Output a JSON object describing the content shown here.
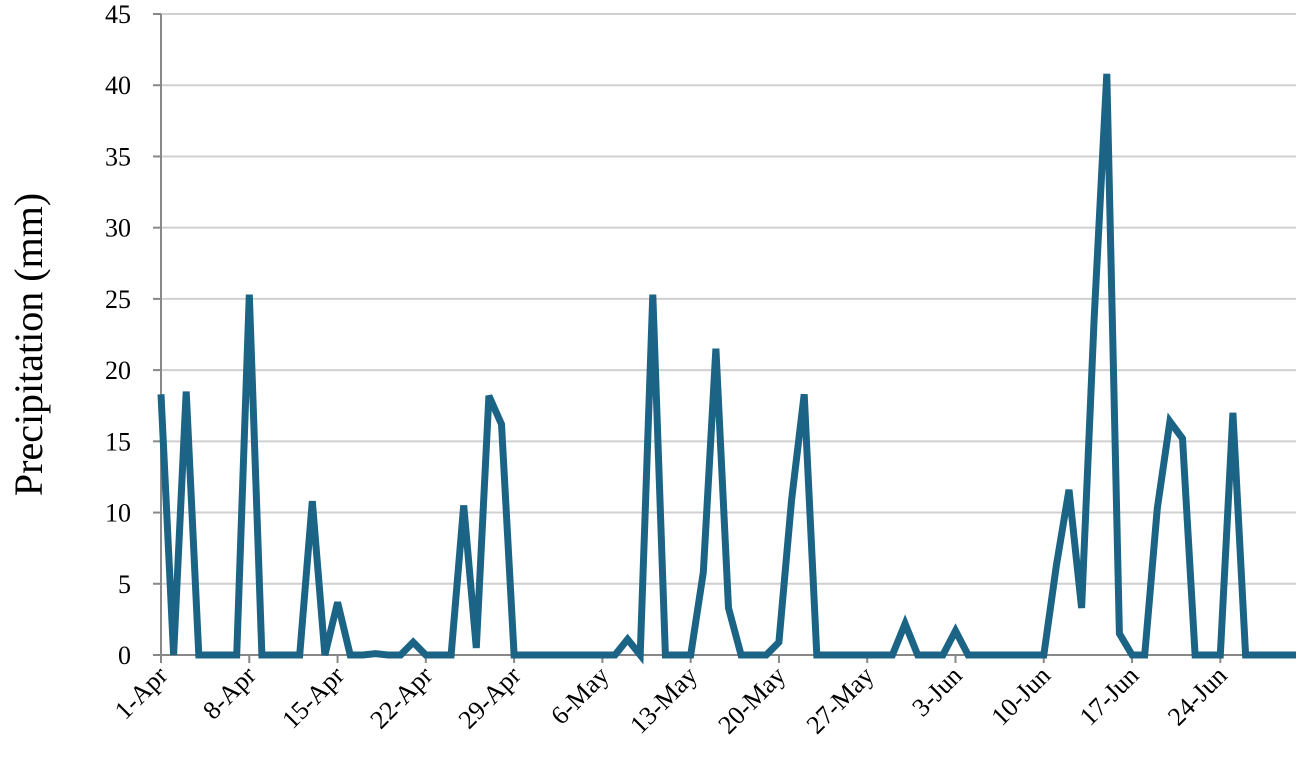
{
  "chart_data": {
    "type": "line",
    "title": "",
    "xlabel": "",
    "ylabel": "Precipitation  (mm)",
    "ylim": [
      0,
      45
    ],
    "yticks": [
      0,
      5,
      10,
      15,
      20,
      25,
      30,
      35,
      40,
      45
    ],
    "xlim": [
      "2021-04-01",
      "2021-06-30"
    ],
    "x_tick_labels": [
      "1-Apr",
      "8-Apr",
      "15-Apr",
      "22-Apr",
      "29-Apr",
      "6-May",
      "13-May",
      "20-May",
      "27-May",
      "3-Jun",
      "10-Jun",
      "17-Jun",
      "24-Jun"
    ],
    "x_tick_dates": [
      "2021-04-01",
      "2021-04-08",
      "2021-04-15",
      "2021-04-22",
      "2021-04-29",
      "2021-05-06",
      "2021-05-13",
      "2021-05-20",
      "2021-05-27",
      "2021-06-03",
      "2021-06-10",
      "2021-06-17",
      "2021-06-24"
    ],
    "grid": true,
    "line_color": "#1b6485",
    "series": [
      {
        "x": [
          "2021-04-01",
          "2021-04-02",
          "2021-04-03",
          "2021-04-04",
          "2021-04-05",
          "2021-04-06",
          "2021-04-07",
          "2021-04-08",
          "2021-04-09",
          "2021-04-10",
          "2021-04-11",
          "2021-04-12",
          "2021-04-13",
          "2021-04-14",
          "2021-04-15",
          "2021-04-16",
          "2021-04-17",
          "2021-04-18",
          "2021-04-19",
          "2021-04-20",
          "2021-04-21",
          "2021-04-22",
          "2021-04-23",
          "2021-04-24",
          "2021-04-25",
          "2021-04-26",
          "2021-04-27",
          "2021-04-28",
          "2021-04-29",
          "2021-04-30",
          "2021-05-01",
          "2021-05-02",
          "2021-05-03",
          "2021-05-04",
          "2021-05-05",
          "2021-05-06",
          "2021-05-07",
          "2021-05-08",
          "2021-05-09",
          "2021-05-10",
          "2021-05-11",
          "2021-05-12",
          "2021-05-13",
          "2021-05-14",
          "2021-05-15",
          "2021-05-16",
          "2021-05-17",
          "2021-05-18",
          "2021-05-19",
          "2021-05-20",
          "2021-05-21",
          "2021-05-22",
          "2021-05-23",
          "2021-05-24",
          "2021-05-25",
          "2021-05-26",
          "2021-05-27",
          "2021-05-28",
          "2021-05-29",
          "2021-05-30",
          "2021-05-31",
          "2021-06-01",
          "2021-06-02",
          "2021-06-03",
          "2021-06-04",
          "2021-06-05",
          "2021-06-06",
          "2021-06-07",
          "2021-06-08",
          "2021-06-09",
          "2021-06-10",
          "2021-06-11",
          "2021-06-12",
          "2021-06-13",
          "2021-06-14",
          "2021-06-15",
          "2021-06-16",
          "2021-06-17",
          "2021-06-18",
          "2021-06-19",
          "2021-06-20",
          "2021-06-21",
          "2021-06-22",
          "2021-06-23",
          "2021-06-24",
          "2021-06-25",
          "2021-06-26",
          "2021-06-27",
          "2021-06-28",
          "2021-06-29",
          "2021-06-30"
        ],
        "values": [
          18.3,
          0,
          18.5,
          0,
          0,
          0,
          0,
          25.3,
          0,
          0,
          0,
          0,
          10.8,
          0,
          3.7,
          0,
          0,
          0.1,
          0,
          0,
          0.9,
          0,
          0,
          0,
          10.5,
          0.5,
          18.2,
          16.2,
          0,
          0,
          0,
          0,
          0,
          0,
          0,
          0,
          0,
          1.1,
          0,
          25.3,
          0,
          0,
          0,
          5.8,
          21.5,
          3.3,
          0,
          0,
          0,
          0.9,
          10.9,
          18.3,
          0,
          0,
          0,
          0,
          0,
          0,
          0,
          2.2,
          0,
          0,
          0,
          1.7,
          0,
          0,
          0,
          0,
          0,
          0,
          0,
          6.3,
          11.6,
          3.3,
          23.7,
          40.8,
          1.5,
          0,
          0,
          10.3,
          16.4,
          15.2,
          0,
          0,
          0,
          17,
          0,
          0,
          0,
          0,
          0
        ]
      }
    ]
  }
}
